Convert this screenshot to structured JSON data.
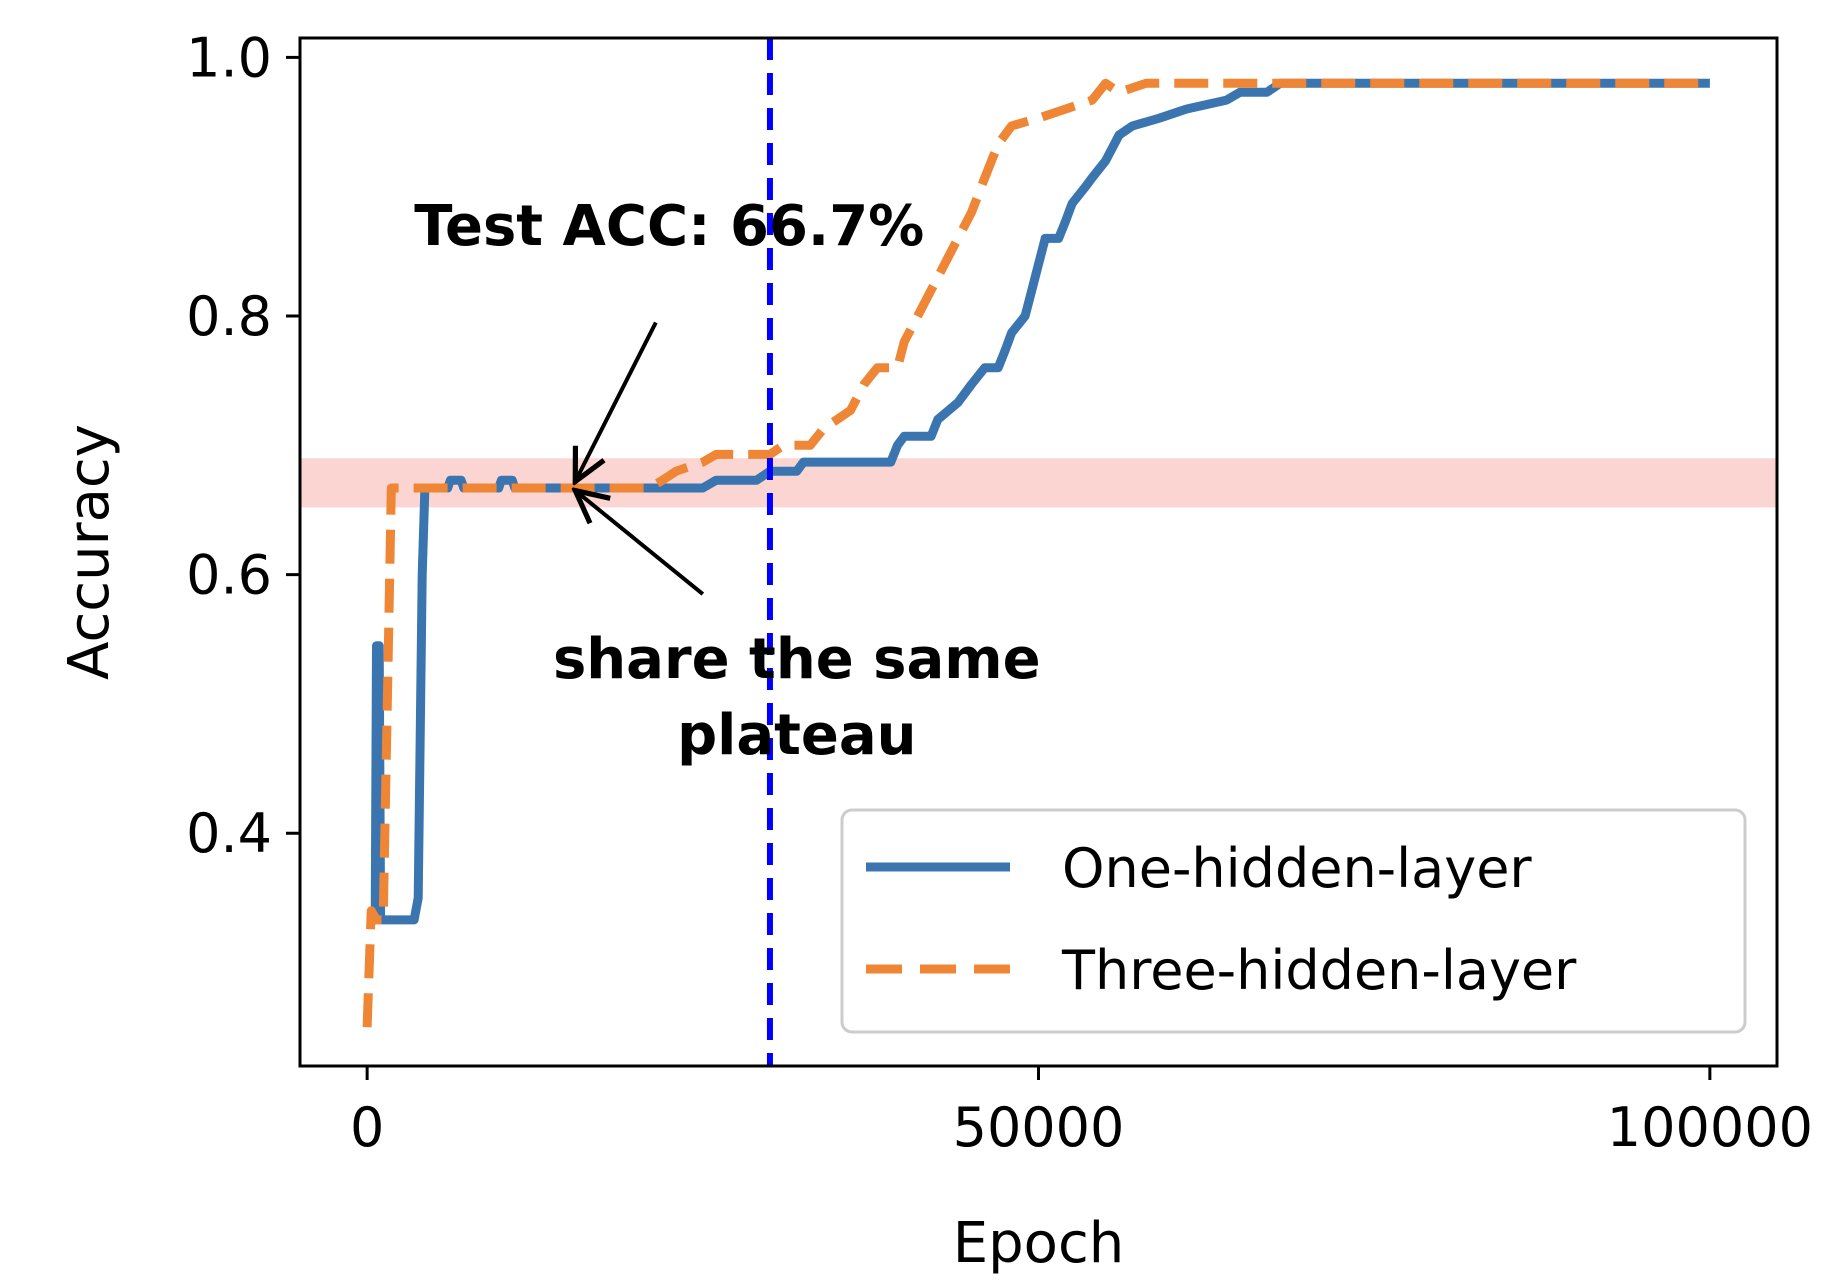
{
  "chart_data": {
    "type": "line",
    "xlabel": "Epoch",
    "ylabel": "Accuracy",
    "xlim": [
      -5000,
      105000
    ],
    "ylim": [
      0.22,
      1.015
    ],
    "x_ticks": [
      {
        "value": 0,
        "label": "0"
      },
      {
        "value": 50000,
        "label": "50000"
      },
      {
        "value": 100000,
        "label": "100000"
      }
    ],
    "y_ticks": [
      {
        "value": 0.4,
        "label": "0.4"
      },
      {
        "value": 0.6,
        "label": "0.6"
      },
      {
        "value": 0.8,
        "label": "0.8"
      },
      {
        "value": 1.0,
        "label": "1.0"
      }
    ],
    "grid": false,
    "legend_position": "bottom-right",
    "series": [
      {
        "name": "One-hidden-layer",
        "color": "#3b75af",
        "style": "solid",
        "points": [
          [
            0,
            0.333
          ],
          [
            600,
            0.333
          ],
          [
            700,
            0.545
          ],
          [
            900,
            0.545
          ],
          [
            1000,
            0.333
          ],
          [
            3500,
            0.333
          ],
          [
            3800,
            0.35
          ],
          [
            4100,
            0.6
          ],
          [
            4300,
            0.667
          ],
          [
            6000,
            0.667
          ],
          [
            6200,
            0.673
          ],
          [
            7000,
            0.673
          ],
          [
            7200,
            0.667
          ],
          [
            9800,
            0.667
          ],
          [
            10000,
            0.673
          ],
          [
            10800,
            0.673
          ],
          [
            11000,
            0.667
          ],
          [
            25000,
            0.667
          ],
          [
            26000,
            0.673
          ],
          [
            29000,
            0.673
          ],
          [
            30000,
            0.68
          ],
          [
            32000,
            0.68
          ],
          [
            32500,
            0.687
          ],
          [
            39000,
            0.687
          ],
          [
            39500,
            0.7
          ],
          [
            40000,
            0.707
          ],
          [
            42000,
            0.707
          ],
          [
            42500,
            0.72
          ],
          [
            44000,
            0.733
          ],
          [
            45000,
            0.747
          ],
          [
            46000,
            0.76
          ],
          [
            47000,
            0.76
          ],
          [
            47500,
            0.773
          ],
          [
            48000,
            0.787
          ],
          [
            49000,
            0.8
          ],
          [
            49500,
            0.82
          ],
          [
            50000,
            0.84
          ],
          [
            50500,
            0.86
          ],
          [
            51500,
            0.86
          ],
          [
            52000,
            0.873
          ],
          [
            52500,
            0.887
          ],
          [
            53500,
            0.9
          ],
          [
            54000,
            0.907
          ],
          [
            55000,
            0.92
          ],
          [
            56000,
            0.94
          ],
          [
            57000,
            0.947
          ],
          [
            59000,
            0.953
          ],
          [
            61000,
            0.96
          ],
          [
            64000,
            0.967
          ],
          [
            65000,
            0.973
          ],
          [
            67000,
            0.973
          ],
          [
            68000,
            0.98
          ],
          [
            100000,
            0.98
          ]
        ]
      },
      {
        "name": "Three-hidden-layer",
        "color": "#ef8636",
        "style": "dashed",
        "points": [
          [
            0,
            0.25
          ],
          [
            300,
            0.34
          ],
          [
            700,
            0.333
          ],
          [
            1200,
            0.333
          ],
          [
            1500,
            0.5
          ],
          [
            1800,
            0.667
          ],
          [
            21000,
            0.667
          ],
          [
            22000,
            0.673
          ],
          [
            23000,
            0.68
          ],
          [
            25000,
            0.687
          ],
          [
            26000,
            0.693
          ],
          [
            30000,
            0.693
          ],
          [
            31000,
            0.7
          ],
          [
            33000,
            0.7
          ],
          [
            34000,
            0.713
          ],
          [
            36000,
            0.727
          ],
          [
            37000,
            0.747
          ],
          [
            38000,
            0.76
          ],
          [
            39500,
            0.76
          ],
          [
            40000,
            0.78
          ],
          [
            41000,
            0.8
          ],
          [
            42000,
            0.82
          ],
          [
            43000,
            0.84
          ],
          [
            44000,
            0.86
          ],
          [
            45000,
            0.88
          ],
          [
            46000,
            0.907
          ],
          [
            47000,
            0.933
          ],
          [
            48000,
            0.947
          ],
          [
            50000,
            0.953
          ],
          [
            52000,
            0.96
          ],
          [
            54000,
            0.967
          ],
          [
            55000,
            0.98
          ],
          [
            56000,
            0.973
          ],
          [
            58000,
            0.98
          ],
          [
            100000,
            0.98
          ]
        ]
      }
    ],
    "vertical_line": {
      "x": 30000,
      "color": "#0000ff",
      "style": "dashed"
    },
    "shaded_band": {
      "y_low": 0.652,
      "y_high": 0.69,
      "color": "#fbd5d2"
    },
    "annotations": [
      {
        "lines": [
          "Test ACC: 66.7%"
        ],
        "text_at": [
          22500,
          0.855
        ],
        "point_to": [
          15500,
          0.672
        ],
        "arrow_from": [
          21500,
          0.795
        ]
      },
      {
        "lines": [
          "share the same",
          "plateau"
        ],
        "text_at": [
          32000,
          0.52
        ],
        "point_to": [
          15500,
          0.665
        ],
        "arrow_from": [
          25000,
          0.585
        ]
      }
    ]
  }
}
